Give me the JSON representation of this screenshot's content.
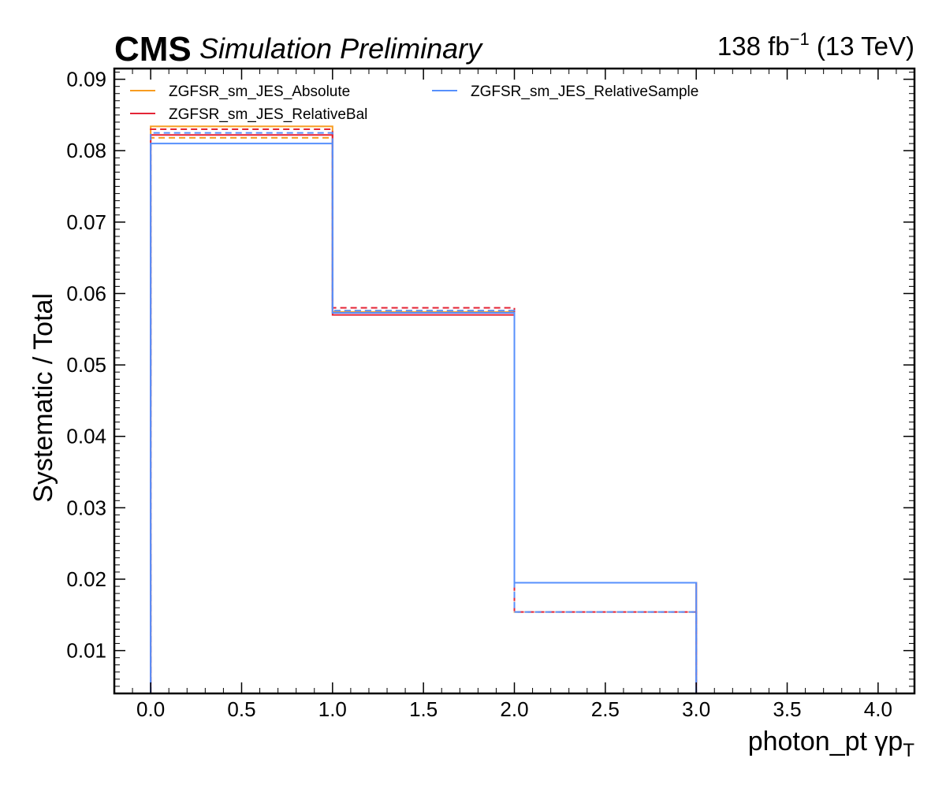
{
  "header": {
    "experiment": "CMS",
    "status": "Simulation Preliminary",
    "lumi_prefix": "138 fb",
    "lumi_exp": "−1",
    "lumi_suffix": " (13 TeV)"
  },
  "chart_data": {
    "type": "line",
    "style": "step-histogram",
    "xlabel": "photon_pt   γp",
    "xlabel_sub": "T",
    "ylabel": "Systematic / Total",
    "xlim": [
      -0.2,
      4.2
    ],
    "ylim": [
      0.004,
      0.0915
    ],
    "x_ticks": [
      "0.0",
      "0.5",
      "1.0",
      "1.5",
      "2.0",
      "2.5",
      "3.0",
      "3.5",
      "4.0"
    ],
    "y_ticks": [
      "0.01",
      "0.02",
      "0.03",
      "0.04",
      "0.05",
      "0.06",
      "0.07",
      "0.08",
      "0.09"
    ],
    "bin_edges": [
      0,
      1,
      2,
      3,
      4
    ],
    "legend_position": "top-left",
    "series": [
      {
        "name": "ZGFSR_sm_JES_Absolute",
        "color": "#f89c20",
        "up": [
          0.0834,
          0.0574,
          0.0195,
          0.004
        ],
        "down": [
          0.0818,
          0.0576,
          0.0154,
          0.004
        ]
      },
      {
        "name": "ZGFSR_sm_JES_RelativeBal",
        "color": "#e42536",
        "up": [
          0.0822,
          0.057,
          0.0195,
          0.004
        ],
        "down": [
          0.083,
          0.058,
          0.0154,
          0.004
        ]
      },
      {
        "name": "ZGFSR_sm_JES_RelativeSample",
        "color": "#5790fc",
        "up": [
          0.081,
          0.0573,
          0.0195,
          0.004
        ],
        "down": [
          0.0825,
          0.0576,
          0.0154,
          0.004
        ]
      }
    ]
  }
}
